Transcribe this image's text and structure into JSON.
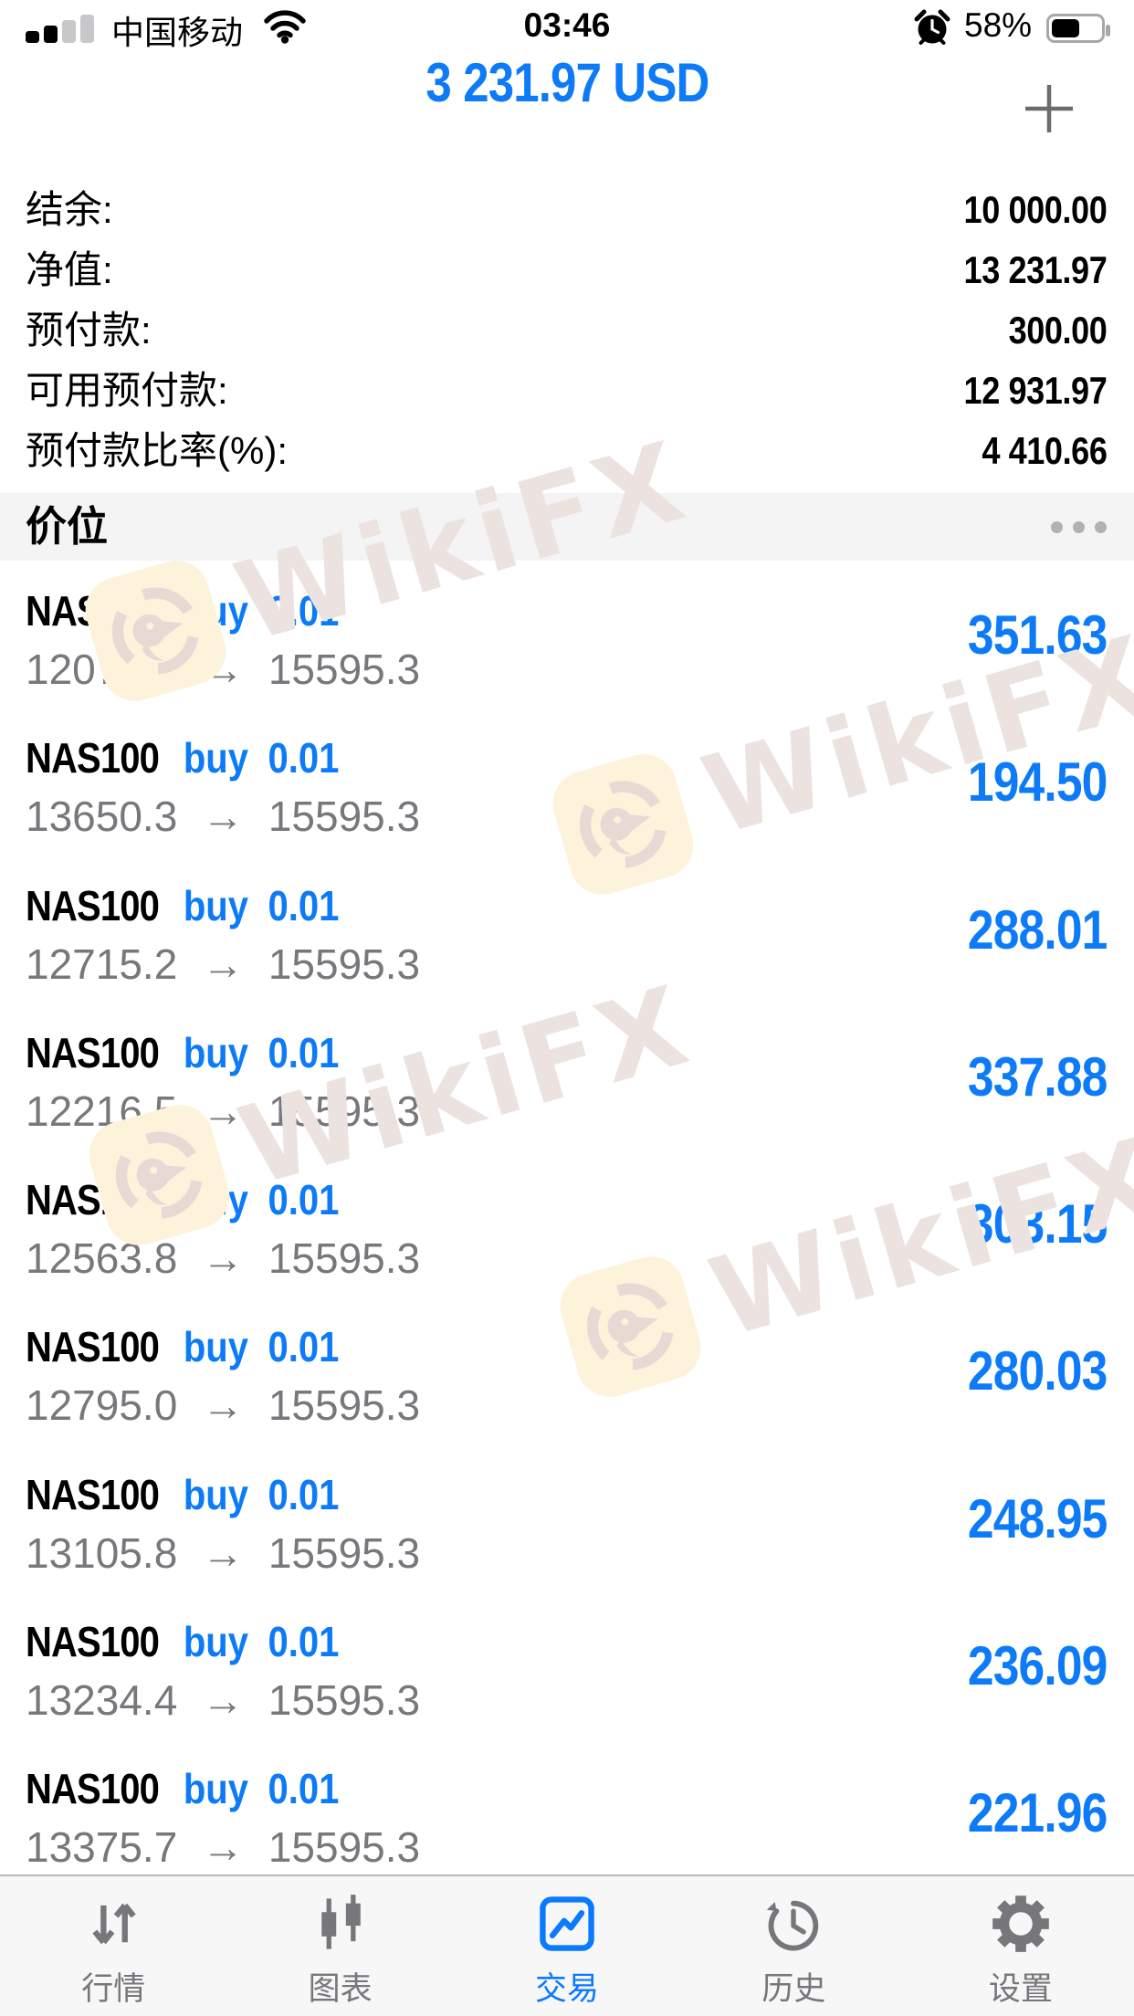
{
  "status_bar": {
    "carrier": "中国移动",
    "time": "03:46",
    "battery_percent": "58%",
    "battery_level": 58,
    "icons": [
      "signal-bars-icon",
      "wifi-icon",
      "alarm-icon",
      "battery-icon"
    ]
  },
  "header": {
    "balance": "3 231.97 USD",
    "add_label": "+"
  },
  "account": {
    "rows": [
      {
        "label": "结余:",
        "value": "10 000.00"
      },
      {
        "label": "净值:",
        "value": "13 231.97"
      },
      {
        "label": "预付款:",
        "value": "300.00"
      },
      {
        "label": "可用预付款:",
        "value": "12 931.97"
      },
      {
        "label": "预付款比率(%):",
        "value": "4 410.66"
      }
    ]
  },
  "section": {
    "title": "价位",
    "more_icon": "ellipsis-icon"
  },
  "list": {
    "arrow": "→"
  },
  "trades": [
    {
      "symbol": "NAS100",
      "side": "buy",
      "volume": "0.01",
      "open": "12079.0",
      "current": "15595.3",
      "profit": "351.63"
    },
    {
      "symbol": "NAS100",
      "side": "buy",
      "volume": "0.01",
      "open": "13650.3",
      "current": "15595.3",
      "profit": "194.50"
    },
    {
      "symbol": "NAS100",
      "side": "buy",
      "volume": "0.01",
      "open": "12715.2",
      "current": "15595.3",
      "profit": "288.01"
    },
    {
      "symbol": "NAS100",
      "side": "buy",
      "volume": "0.01",
      "open": "12216.5",
      "current": "15595.3",
      "profit": "337.88"
    },
    {
      "symbol": "NAS100",
      "side": "buy",
      "volume": "0.01",
      "open": "12563.8",
      "current": "15595.3",
      "profit": "303.15"
    },
    {
      "symbol": "NAS100",
      "side": "buy",
      "volume": "0.01",
      "open": "12795.0",
      "current": "15595.3",
      "profit": "280.03"
    },
    {
      "symbol": "NAS100",
      "side": "buy",
      "volume": "0.01",
      "open": "13105.8",
      "current": "15595.3",
      "profit": "248.95"
    },
    {
      "symbol": "NAS100",
      "side": "buy",
      "volume": "0.01",
      "open": "13234.4",
      "current": "15595.3",
      "profit": "236.09"
    },
    {
      "symbol": "NAS100",
      "side": "buy",
      "volume": "0.01",
      "open": "13375.7",
      "current": "15595.3",
      "profit": "221.96"
    }
  ],
  "watermark": {
    "text": "WikiFX",
    "logo": "wikifx-eagle-logo"
  },
  "tab_bar": {
    "tabs": [
      {
        "label": "行情",
        "icon": "arrows-up-down-icon",
        "active": false
      },
      {
        "label": "图表",
        "icon": "candlestick-icon",
        "active": false
      },
      {
        "label": "交易",
        "icon": "trade-chart-square-icon",
        "active": true
      },
      {
        "label": "历史",
        "icon": "history-clock-icon",
        "active": false
      },
      {
        "label": "设置",
        "icon": "gear-icon",
        "active": false
      }
    ]
  },
  "colors": {
    "accent": "#0d7bf7",
    "tab-active": "#0a7aff",
    "price-gray": "#77777c",
    "wm-text": "#ece3e0",
    "wm-bg": "#fdf3da",
    "wm-fg": "#e7dad5",
    "bar-bg": "#f4f4f5"
  }
}
